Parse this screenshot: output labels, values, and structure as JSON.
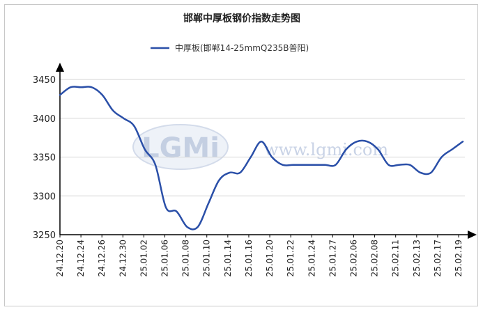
{
  "chart_data": {
    "type": "line",
    "title": "邯郸中厚板钢价指数走势图",
    "series": [
      {
        "name": "中厚板(邯郸14-25mmQ235B普阳)",
        "color": "#2a4fa8",
        "values": [
          3430,
          3440,
          3440,
          3440,
          3430,
          3410,
          3400,
          3390,
          3360,
          3340,
          3285,
          3280,
          3260,
          3260,
          3290,
          3320,
          3330,
          3330,
          3350,
          3370,
          3350,
          3340,
          3340,
          3340,
          3340,
          3340,
          3340,
          3360,
          3370,
          3370,
          3360,
          3340,
          3340,
          3340,
          3330,
          3330,
          3350,
          3360,
          3370
        ]
      }
    ],
    "x_ticks": [
      "24.12.20",
      "24.12.24",
      "24.12.26",
      "24.12.30",
      "25.01.02",
      "25.01.06",
      "25.01.08",
      "25.01.10",
      "25.01.14",
      "25.01.16",
      "25.01.20",
      "25.01.22",
      "25.01.24",
      "25.01.27",
      "25.02.06",
      "25.02.08",
      "25.02.11",
      "25.02.13",
      "25.02.17",
      "25.02.19"
    ],
    "y_ticks": [
      3250,
      3300,
      3350,
      3400,
      3450
    ],
    "ylim": [
      3250,
      3460
    ],
    "grid": true,
    "legend_position": "top-center"
  },
  "watermark": {
    "logo": "LGMi",
    "url": "www.lgmi.com"
  }
}
